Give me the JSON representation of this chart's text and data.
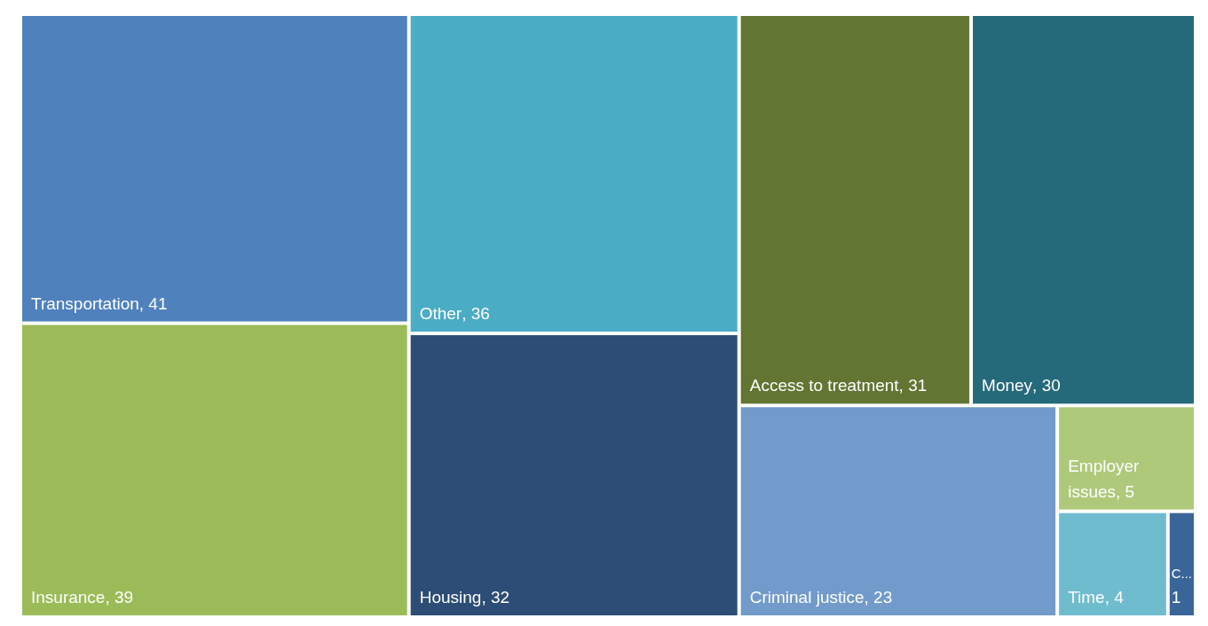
{
  "chart_data": {
    "type": "other",
    "categories": [
      "Transportation",
      "Insurance",
      "Other",
      "Housing",
      "Access to treatment",
      "Money",
      "Criminal justice",
      "Employer issues",
      "Time",
      "C..."
    ],
    "values": [
      41,
      39,
      36,
      32,
      31,
      30,
      23,
      5,
      4,
      1
    ],
    "colors": [
      "#4f81bd",
      "#9bbb59",
      "#4bacc6",
      "#2c4d75",
      "#627532",
      "#256a7a",
      "#729aca",
      "#afc97a",
      "#6fbccf",
      "#3a6598"
    ],
    "value_labels": [
      ", 41",
      ", 39",
      ", 36",
      ", 32",
      ", 31",
      ", 30",
      ", 23",
      ", 5",
      ", 4",
      "1"
    ]
  }
}
